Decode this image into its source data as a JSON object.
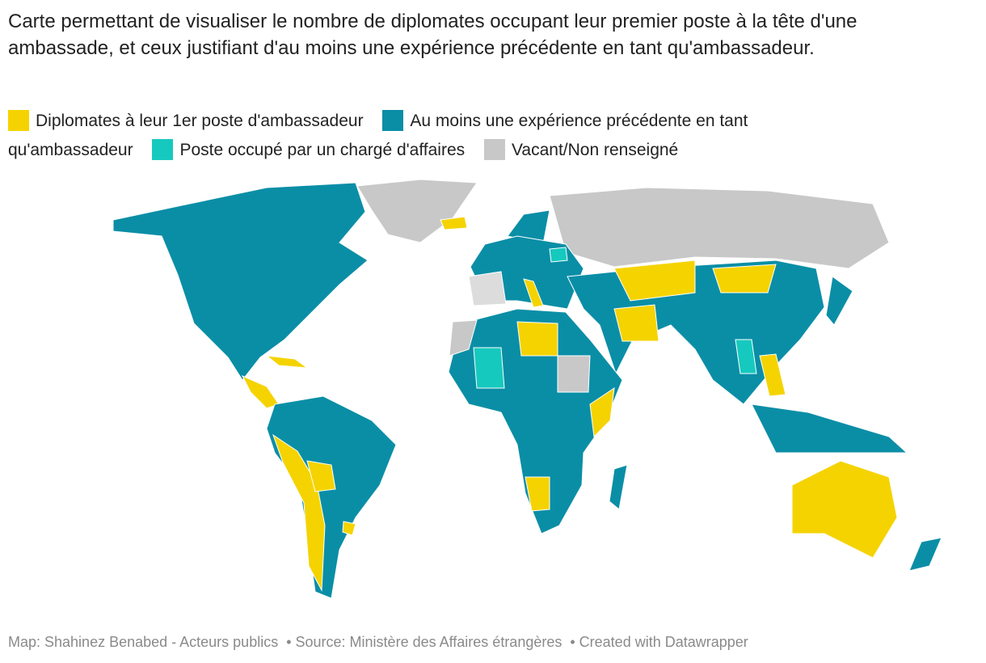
{
  "title": "Carte permettant de visualiser le nombre de diplomates occupant leur premier poste à la tête d'une ambassade, et ceux justifiant d'au moins une expérience précédente en tant qu'ambassadeur.",
  "legend": [
    {
      "label": "Diplomates à leur 1er poste d'ambassadeur",
      "color": "#f5d300"
    },
    {
      "label": "Au moins une expérience précédente en tant qu'ambassadeur",
      "color": "#0a8ea6"
    },
    {
      "label": "Poste occupé par un chargé d'affaires",
      "color": "#16c9be"
    },
    {
      "label": "Vacant/Non renseigné",
      "color": "#c8c8c8"
    }
  ],
  "footer": [
    "Map: Shahinez Benabed - Acteurs publics",
    "• Source: Ministère des Affaires étrangères",
    "• Created with Datawrapper"
  ]
}
